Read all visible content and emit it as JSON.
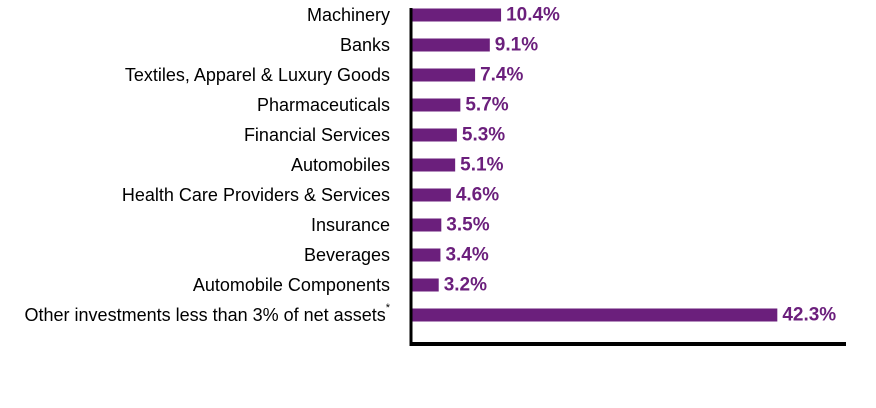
{
  "chart_data": {
    "type": "bar",
    "orientation": "horizontal",
    "categories": [
      "Machinery",
      "Banks",
      "Textiles, Apparel & Luxury Goods",
      "Pharmaceuticals",
      "Financial Services",
      "Automobiles",
      "Health Care Providers & Services",
      "Insurance",
      "Beverages",
      "Automobile Components",
      "Other investments less than 3% of net assets"
    ],
    "footnote_marks": [
      "",
      "",
      "",
      "",
      "",
      "",
      "",
      "",
      "",
      "",
      "*"
    ],
    "values": [
      10.4,
      9.1,
      7.4,
      5.7,
      5.3,
      5.1,
      4.6,
      3.5,
      3.4,
      3.2,
      42.3
    ],
    "value_labels": [
      "10.4%",
      "9.1%",
      "7.4%",
      "5.7%",
      "5.3%",
      "5.1%",
      "4.6%",
      "3.5%",
      "3.4%",
      "3.2%",
      "42.3%"
    ],
    "title": "",
    "xlabel": "",
    "ylabel": "",
    "xlim": [
      0,
      50
    ],
    "grid": false,
    "legend": "none",
    "bar_color": "#6b1f7c",
    "label_color": "#6b1f7c",
    "axis_color": "#000000"
  }
}
